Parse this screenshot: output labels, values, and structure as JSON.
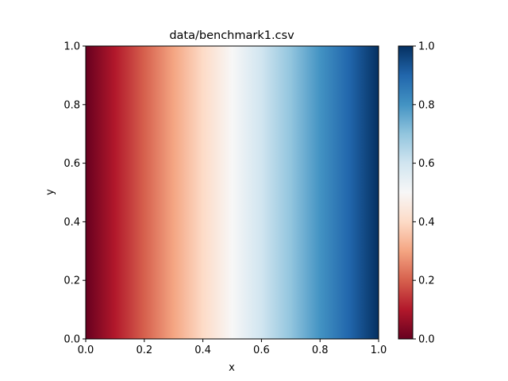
{
  "chart_data": {
    "type": "heatmap",
    "title": "data/benchmark1.csv",
    "xlabel": "x",
    "ylabel": "y",
    "xlim": [
      0.0,
      1.0
    ],
    "ylim": [
      0.0,
      1.0
    ],
    "xticks": [
      "0.0",
      "0.2",
      "0.4",
      "0.6",
      "0.8",
      "1.0"
    ],
    "yticks": [
      "0.0",
      "0.2",
      "0.4",
      "0.6",
      "0.8",
      "1.0"
    ],
    "field": "value = x (varies linearly left to right, constant in y)",
    "colormap": "RdBu",
    "colormap_stops": [
      "#67001f",
      "#b2182b",
      "#d6604d",
      "#f4a582",
      "#fddbc7",
      "#f7f7f7",
      "#d1e5f0",
      "#92c5de",
      "#4393c3",
      "#2166ac",
      "#053061"
    ],
    "colorbar": {
      "range": [
        0.0,
        1.0
      ],
      "ticks": [
        "0.0",
        "0.2",
        "0.4",
        "0.6",
        "0.8",
        "1.0"
      ]
    },
    "grid": false
  }
}
